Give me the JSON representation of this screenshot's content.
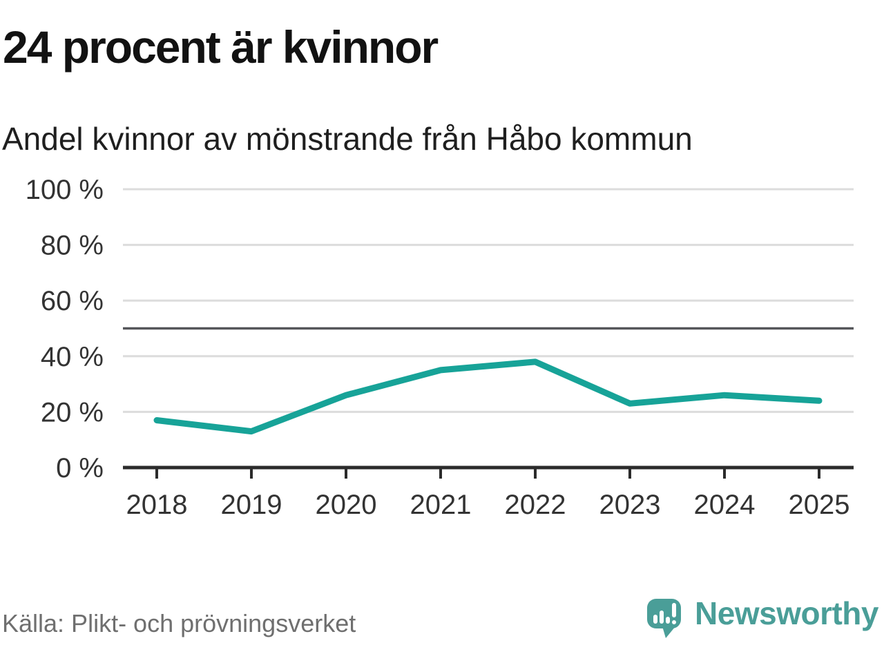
{
  "header": {
    "title": "24 procent är kvinnor",
    "subtitle": "Andel kvinnor av mönstrande från Håbo kommun"
  },
  "chart_data": {
    "type": "line",
    "title": "24 procent är kvinnor",
    "subtitle": "Andel kvinnor av mönstrande från Håbo kommun",
    "categories": [
      "2018",
      "2019",
      "2020",
      "2021",
      "2022",
      "2023",
      "2024",
      "2025"
    ],
    "series": [
      {
        "name": "Andel kvinnor av mönstrande",
        "values": [
          17,
          13,
          26,
          35,
          38,
          23,
          26,
          24
        ]
      }
    ],
    "unit": "%",
    "ylim": [
      0,
      100
    ],
    "yticks": [
      0,
      20,
      40,
      60,
      80,
      100
    ],
    "ytick_suffix": " %",
    "grid": true,
    "legend": "none",
    "reference_line": {
      "value": 50
    },
    "colors": {
      "line": "#17A398",
      "grid": "#DCDCDC",
      "reference": "#55565A",
      "axis": "#2B2B2B",
      "tick_text": "#333333"
    }
  },
  "footer": {
    "source": "Källa: Plikt- och prövningsverket",
    "brand_name": "Newsworthy",
    "brand_color": "#4A9E98"
  }
}
